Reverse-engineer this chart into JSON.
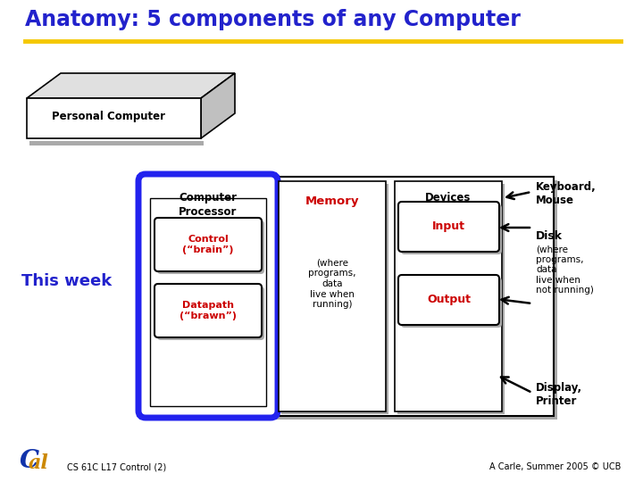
{
  "title": "Anatomy: 5 components of any Computer",
  "title_color": "#2222cc",
  "title_fontsize": 17,
  "underline_color": "#f5c800",
  "this_week_text": "This week",
  "this_week_color": "#2222cc",
  "footer_left": "CS 61C L17 Control (2)",
  "footer_right": "A Carle, Summer 2005 © UCB",
  "pc_label": "Personal Computer",
  "computer_label": "Computer",
  "processor_label": "Processor",
  "control_label": "Control\n(“brain”)",
  "datapath_label": "Datapath\n(“brawn”)",
  "memory_label": "Memory",
  "memory_sub": "(where\nprograms,\ndata\nlive when\nrunning)",
  "devices_label": "Devices",
  "input_label": "Input",
  "output_label": "Output",
  "keyboard_mouse": "Keyboard,\nMouse",
  "disk_label": "Disk",
  "disk_sub": "(where\nprograms,\ndata\nlive when\nnot running)",
  "display_printer": "Display,\nPrinter",
  "red_color": "#cc0000",
  "black_color": "#000000",
  "blue_border_color": "#2222ee",
  "white": "#ffffff",
  "shadow_color": "#aaaaaa"
}
